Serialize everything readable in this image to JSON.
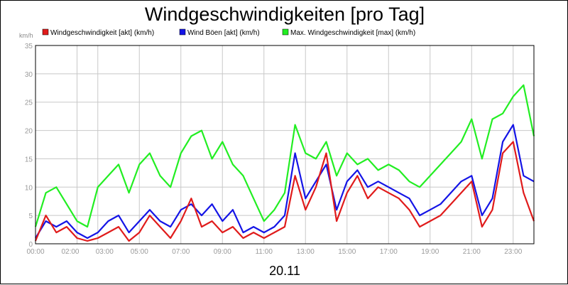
{
  "chart_data": {
    "type": "line",
    "title": "Windgeschwindigkeiten [pro Tag]",
    "y_unit": "km/h",
    "xlabel": "20.11",
    "ylim": [
      0,
      35
    ],
    "y_ticks": [
      0,
      5,
      10,
      15,
      20,
      25,
      30,
      35
    ],
    "x_tick_labels": [
      "00:00",
      "02:00",
      "03:00",
      "05:00",
      "07:00",
      "09:00",
      "11:00",
      "13:00",
      "15:00",
      "17:00",
      "19:00",
      "21:00",
      "23:00"
    ],
    "x_tick_hours": [
      0,
      2,
      3,
      5,
      7,
      9,
      11,
      13,
      15,
      17,
      19,
      21,
      23
    ],
    "xlim_hours": [
      0,
      24
    ],
    "grid": true,
    "legend_position": "top",
    "series": [
      {
        "name": "Windgeschwindigkeit [akt] (km/h)",
        "color": "#e01b1b",
        "x": [
          0,
          0.5,
          1,
          1.5,
          2,
          2.5,
          3,
          3.5,
          4,
          4.5,
          5,
          5.5,
          6,
          6.5,
          7,
          7.5,
          8,
          8.5,
          9,
          9.5,
          10,
          10.5,
          11,
          11.5,
          12,
          12.5,
          13,
          13.5,
          14,
          14.5,
          15,
          15.5,
          16,
          16.5,
          17,
          17.5,
          18,
          18.5,
          19,
          19.5,
          20,
          20.5,
          21,
          21.5,
          22,
          22.5,
          23,
          23.5,
          24
        ],
        "values": [
          0.5,
          5,
          2,
          3,
          1,
          0.5,
          1,
          2,
          3,
          0.5,
          2,
          5,
          3,
          1,
          4,
          8,
          3,
          4,
          2,
          3,
          1,
          2,
          1,
          2,
          3,
          12,
          6,
          10,
          16,
          4,
          9,
          12,
          8,
          10,
          9,
          8,
          6,
          3,
          4,
          5,
          7,
          9,
          11,
          3,
          6,
          16,
          18,
          9,
          4
        ]
      },
      {
        "name": "Wind Böen [akt] (km/h)",
        "color": "#1414e6",
        "x": [
          0,
          0.5,
          1,
          1.5,
          2,
          2.5,
          3,
          3.5,
          4,
          4.5,
          5,
          5.5,
          6,
          6.5,
          7,
          7.5,
          8,
          8.5,
          9,
          9.5,
          10,
          10.5,
          11,
          11.5,
          12,
          12.5,
          13,
          13.5,
          14,
          14.5,
          15,
          15.5,
          16,
          16.5,
          17,
          17.5,
          18,
          18.5,
          19,
          19.5,
          20,
          20.5,
          21,
          21.5,
          22,
          22.5,
          23,
          23.5,
          24
        ],
        "values": [
          1,
          4,
          3,
          4,
          2,
          1,
          2,
          4,
          5,
          2,
          4,
          6,
          4,
          3,
          6,
          7,
          5,
          7,
          4,
          6,
          2,
          3,
          2,
          3,
          5,
          16,
          8,
          11,
          14,
          6,
          11,
          13,
          10,
          11,
          10,
          9,
          8,
          5,
          6,
          7,
          9,
          11,
          12,
          5,
          8,
          18,
          21,
          12,
          11
        ]
      },
      {
        "name": "Max. Windgeschwindigkeit [max] (km/h)",
        "color": "#22ee22",
        "x": [
          0,
          0.5,
          1,
          1.5,
          2,
          2.5,
          3,
          3.5,
          4,
          4.5,
          5,
          5.5,
          6,
          6.5,
          7,
          7.5,
          8,
          8.5,
          9,
          9.5,
          10,
          10.5,
          11,
          11.5,
          12,
          12.5,
          13,
          13.5,
          14,
          14.5,
          15,
          15.5,
          16,
          16.5,
          17,
          17.5,
          18,
          18.5,
          19,
          19.5,
          20,
          20.5,
          21,
          21.5,
          22,
          22.5,
          23,
          23.5,
          24
        ],
        "values": [
          3,
          9,
          10,
          7,
          4,
          3,
          10,
          12,
          14,
          9,
          14,
          16,
          12,
          10,
          16,
          19,
          20,
          15,
          18,
          14,
          12,
          8,
          4,
          6,
          9,
          21,
          16,
          15,
          18,
          12,
          16,
          14,
          15,
          13,
          14,
          13,
          11,
          10,
          12,
          14,
          16,
          18,
          22,
          15,
          22,
          23,
          26,
          28,
          19
        ]
      }
    ]
  }
}
